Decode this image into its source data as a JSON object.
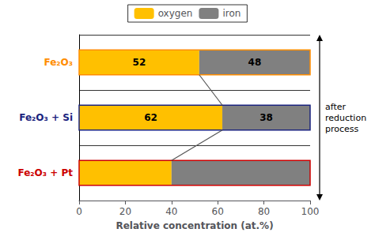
{
  "chart_data": {
    "type": "bar",
    "orientation": "horizontal",
    "stacked": true,
    "categories": [
      "Fe₂O₃",
      "Fe₂O₃ + Si",
      "Fe₂O₃ + Pt"
    ],
    "colors": [
      "#FF8C00",
      "#1a237e",
      "#cc0000"
    ],
    "series": [
      {
        "name": "oxygen",
        "color": "#FFC000",
        "values": [
          52,
          62,
          40
        ],
        "value_labels": [
          "52",
          "62",
          null
        ]
      },
      {
        "name": "iron",
        "color": "#808080",
        "values": [
          48,
          38,
          60
        ],
        "value_labels": [
          "48",
          "38",
          null
        ]
      }
    ],
    "data_labels": true,
    "xlabel": "Relative concentration (at.%)",
    "xlim": [
      0,
      100
    ],
    "xticks": [
      0,
      20,
      40,
      60,
      80,
      100
    ],
    "grid": false,
    "legend": "top",
    "annotation": "after\nreduction\nprocess"
  }
}
